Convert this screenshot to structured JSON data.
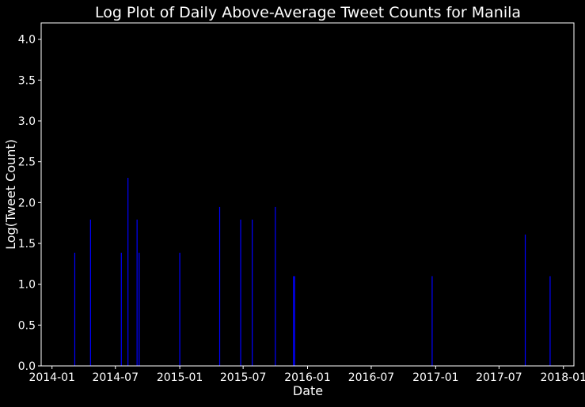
{
  "chart_data": {
    "type": "bar",
    "title": "Log Plot of Daily Above-Average Tweet Counts for Manila",
    "xlabel": "Date",
    "ylabel": "Log(Tweet Count)",
    "xlim": [
      "2013-12-01",
      "2018-01-31"
    ],
    "ylim": [
      0,
      4.2
    ],
    "x_ticks": [
      "2014-01",
      "2014-07",
      "2015-01",
      "2015-07",
      "2016-01",
      "2016-07",
      "2017-01",
      "2017-07",
      "2018-01"
    ],
    "y_ticks": [
      "0.0",
      "0.5",
      "1.0",
      "1.5",
      "2.0",
      "2.5",
      "3.0",
      "3.5",
      "4.0"
    ],
    "grid": false,
    "colors": {
      "background": "#000000",
      "bars": "#0000ff",
      "text": "#ffffff",
      "axes": "#ffffff"
    },
    "series": [
      {
        "points": [
          {
            "x": "2014-03-07",
            "y": 1.386
          },
          {
            "x": "2014-04-21",
            "y": 1.792
          },
          {
            "x": "2014-07-18",
            "y": 1.386
          },
          {
            "x": "2014-08-06",
            "y": 2.303
          },
          {
            "x": "2014-09-01",
            "y": 1.792
          },
          {
            "x": "2014-09-07",
            "y": 1.386
          },
          {
            "x": "2015-01-01",
            "y": 1.386
          },
          {
            "x": "2015-04-25",
            "y": 1.946
          },
          {
            "x": "2015-06-24",
            "y": 1.792
          },
          {
            "x": "2015-07-27",
            "y": 1.792
          },
          {
            "x": "2015-10-01",
            "y": 1.946
          },
          {
            "x": "2015-11-22",
            "y": 1.099
          },
          {
            "x": "2015-11-25",
            "y": 1.099
          },
          {
            "x": "2016-12-22",
            "y": 1.099
          },
          {
            "x": "2017-09-14",
            "y": 1.609
          },
          {
            "x": "2017-11-24",
            "y": 1.099
          }
        ]
      }
    ]
  }
}
